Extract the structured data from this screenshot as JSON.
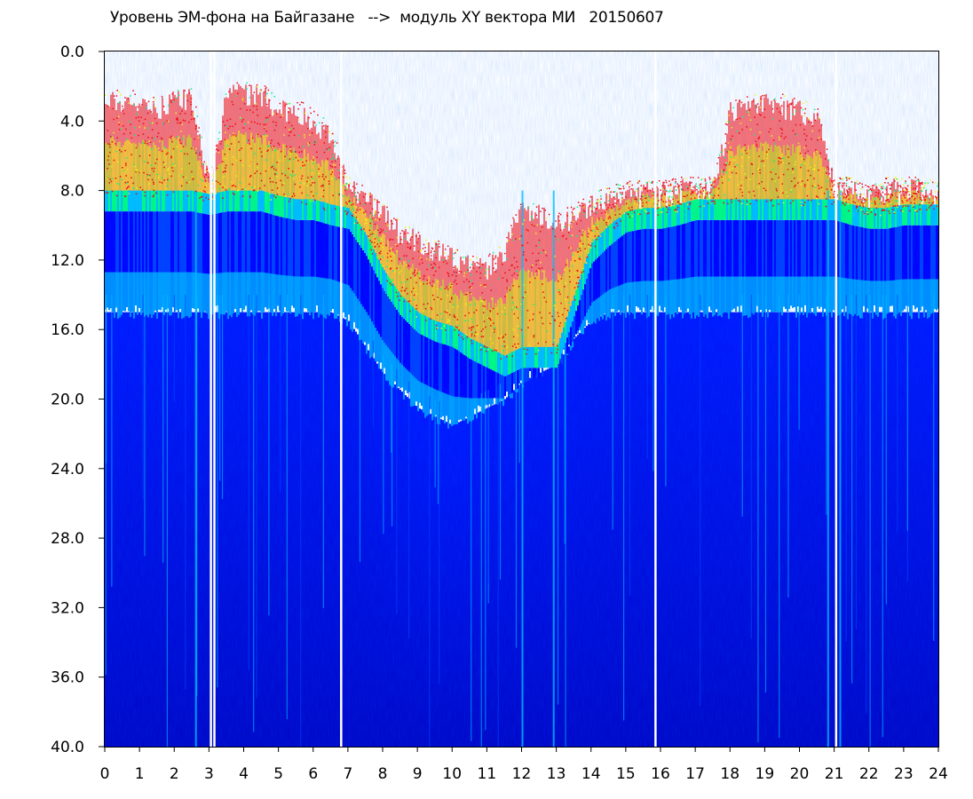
{
  "chart_data": {
    "type": "heatmap",
    "title": "Уровень ЭМ-фона на Байгазане   -->  модуль XY вектора МИ   20150607",
    "xlabel": "",
    "ylabel": "",
    "xlim": [
      0,
      24
    ],
    "ylim": [
      0,
      40
    ],
    "y_inverted": true,
    "x_ticks": [
      "0",
      "1",
      "2",
      "3",
      "4",
      "5",
      "6",
      "7",
      "8",
      "9",
      "10",
      "11",
      "12",
      "13",
      "14",
      "15",
      "16",
      "17",
      "18",
      "19",
      "20",
      "21",
      "22",
      "23",
      "24"
    ],
    "y_ticks": [
      "0.0",
      "4.0",
      "8.0",
      "12.0",
      "16.0",
      "20.0",
      "24.0",
      "28.0",
      "32.0",
      "36.0",
      "40.0"
    ],
    "grid": false,
    "colormap": [
      "#0000a0",
      "#0000ff",
      "#0040ff",
      "#00c0ff",
      "#00ff80",
      "#c0ff00",
      "#ffff00",
      "#ff0000"
    ],
    "gaps_x": [
      3.05,
      3.15,
      6.8,
      15.85,
      21.05
    ],
    "profile": {
      "x": [
        0,
        0.5,
        1,
        1.5,
        2,
        2.5,
        3,
        3.5,
        4,
        4.5,
        5,
        5.5,
        6,
        6.5,
        7,
        7.5,
        8,
        8.5,
        9,
        9.5,
        10,
        10.5,
        11,
        11.5,
        12,
        12.5,
        13,
        13.5,
        14,
        14.5,
        15,
        15.5,
        16,
        16.5,
        17,
        17.5,
        18,
        18.5,
        19,
        19.5,
        20,
        20.5,
        21,
        21.5,
        22,
        22.5,
        23,
        23.5,
        24
      ],
      "red_top": [
        2.8,
        3,
        3,
        3.5,
        2.5,
        2.8,
        8,
        2.5,
        2.5,
        2.5,
        3.5,
        3.5,
        4,
        5,
        8,
        8.5,
        9.5,
        10.5,
        11,
        11.5,
        12,
        12.5,
        12.5,
        11.5,
        9,
        9.5,
        10,
        9.5,
        9,
        8.5,
        8.2,
        8.2,
        8.2,
        8,
        8,
        8,
        3.5,
        3.2,
        3.0,
        3.2,
        3.5,
        3.8,
        8,
        8,
        8.5,
        8,
        8,
        8,
        8.3
      ],
      "red_bottom": [
        8,
        8,
        8,
        8,
        8,
        8,
        8.2,
        8,
        8,
        8,
        8.3,
        8.5,
        8.5,
        8.8,
        9,
        10.5,
        12.5,
        14,
        15,
        15.5,
        15.8,
        16.5,
        17,
        17.5,
        17,
        17,
        17,
        14,
        11,
        10,
        9.2,
        9,
        9,
        8.8,
        8.5,
        8.5,
        8.5,
        8.5,
        8.5,
        8.5,
        8.5,
        8.5,
        8.5,
        8.8,
        9,
        9,
        8.8,
        8.8,
        8.8
      ],
      "cyan_bottom": [
        15,
        15,
        15,
        15,
        15,
        15,
        15,
        15,
        15,
        15,
        15,
        15,
        15,
        15,
        15.5,
        17,
        18.5,
        19.5,
        20.5,
        21,
        21.5,
        21,
        20.5,
        20,
        19,
        18.5,
        18,
        16.5,
        15.5,
        15,
        15,
        15,
        15,
        15,
        15,
        15,
        15,
        15,
        15,
        15,
        15,
        15,
        15,
        15,
        15,
        15,
        15,
        15,
        15
      ]
    }
  }
}
